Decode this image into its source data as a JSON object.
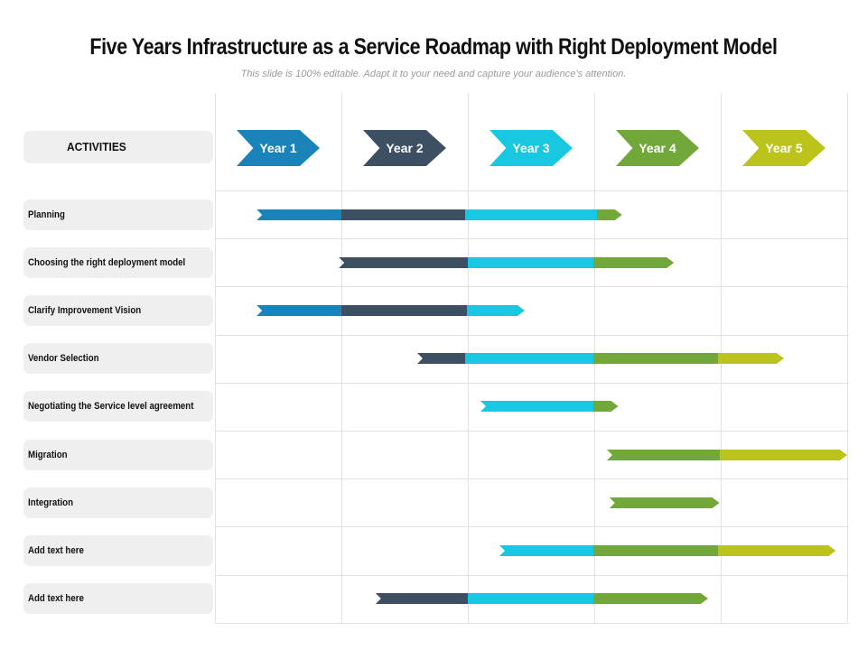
{
  "title": "Five Years Infrastructure as a Service Roadmap with Right Deployment Model",
  "subtitle": "This slide is 100% editable. Adapt it to your need and capture your audience’s attention.",
  "activities_header": "ACTIVITIES",
  "years": [
    {
      "label": "Year 1",
      "color": "#1a84ba"
    },
    {
      "label": "Year 2",
      "color": "#3d4f63"
    },
    {
      "label": "Year 3",
      "color": "#17c8e0"
    },
    {
      "label": "Year 4",
      "color": "#72a83a"
    },
    {
      "label": "Year 5",
      "color": "#bcc41c"
    }
  ],
  "activities": [
    {
      "label": "Planning",
      "start": 0.33,
      "end": 3.22,
      "segments": [
        {
          "year": 0,
          "to": 1.0
        },
        {
          "year": 1,
          "to": 1.98
        },
        {
          "year": 2,
          "to": 3.02
        },
        {
          "year": 3,
          "to": 3.22
        }
      ]
    },
    {
      "label": "Choosing the right deployment model",
      "start": 0.98,
      "end": 3.63,
      "segments": [
        {
          "year": 1,
          "to": 2.0
        },
        {
          "year": 2,
          "to": 2.99
        },
        {
          "year": 3,
          "to": 3.63
        }
      ]
    },
    {
      "label": "Clarify Improvement Vision",
      "start": 0.33,
      "end": 2.45,
      "segments": [
        {
          "year": 0,
          "to": 1.0
        },
        {
          "year": 1,
          "to": 1.99
        },
        {
          "year": 2,
          "to": 2.45
        }
      ]
    },
    {
      "label": "Vendor Selection",
      "start": 1.6,
      "end": 4.5,
      "segments": [
        {
          "year": 1,
          "to": 1.98
        },
        {
          "year": 2,
          "to": 2.99
        },
        {
          "year": 3,
          "to": 3.98
        },
        {
          "year": 4,
          "to": 4.5
        }
      ]
    },
    {
      "label": "Negotiating the Service level agreement",
      "start": 2.1,
      "end": 3.19,
      "segments": [
        {
          "year": 2,
          "to": 2.99
        },
        {
          "year": 3,
          "to": 3.19
        }
      ]
    },
    {
      "label": "Migration",
      "start": 3.1,
      "end": 5.0,
      "segments": [
        {
          "year": 3,
          "to": 3.99
        },
        {
          "year": 4,
          "to": 5.0
        }
      ]
    },
    {
      "label": "Integration",
      "start": 3.12,
      "end": 3.99,
      "segments": [
        {
          "year": 3,
          "to": 3.99
        }
      ]
    },
    {
      "label": "Add text here",
      "start": 2.25,
      "end": 4.91,
      "segments": [
        {
          "year": 2,
          "to": 2.99
        },
        {
          "year": 3,
          "to": 3.98
        },
        {
          "year": 4,
          "to": 4.91
        }
      ]
    },
    {
      "label": "Add text here",
      "start": 1.27,
      "end": 3.9,
      "segments": [
        {
          "year": 1,
          "to": 2.0
        },
        {
          "year": 2,
          "to": 2.99
        },
        {
          "year": 3,
          "to": 3.9
        }
      ]
    }
  ]
}
